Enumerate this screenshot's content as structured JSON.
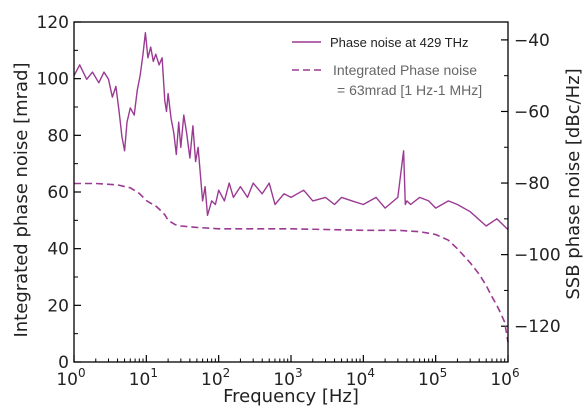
{
  "chart_data": {
    "type": "line",
    "xlabel": "Frequency [Hz]",
    "ylabel_left": "Integrated phase noise [mrad]",
    "ylabel_right": "SSB phase noise [dBc/Hz]",
    "x_scale": "log",
    "xlim": [
      1,
      1000000
    ],
    "ylim_left": [
      0,
      120
    ],
    "ylim_right": [
      -130,
      -35
    ],
    "x_ticks": [
      {
        "value": 1,
        "base": "10",
        "exp": "0"
      },
      {
        "value": 10,
        "base": "10",
        "exp": "1"
      },
      {
        "value": 100,
        "base": "10",
        "exp": "2"
      },
      {
        "value": 1000,
        "base": "10",
        "exp": "3"
      },
      {
        "value": 10000,
        "base": "10",
        "exp": "4"
      },
      {
        "value": 100000,
        "base": "10",
        "exp": "5"
      },
      {
        "value": 1000000,
        "base": "10",
        "exp": "6"
      }
    ],
    "y_ticks_left": [
      "0",
      "20",
      "40",
      "60",
      "80",
      "100",
      "120"
    ],
    "y_ticks_right": [
      "−120",
      "−100",
      "−80",
      "−60",
      "−40"
    ],
    "y_ticks_right_values": [
      -120,
      -100,
      -80,
      -60,
      -40
    ],
    "grid": false,
    "legend_position": "top-right",
    "colors": {
      "series": "#9b3a93"
    },
    "series": [
      {
        "name": "Phase noise at 429 THz",
        "axis": "right",
        "style": "solid",
        "x": [
          1,
          1.2,
          1.5,
          1.8,
          2.2,
          2.6,
          3,
          3.4,
          3.8,
          4.2,
          4.6,
          5,
          5.4,
          6,
          6.8,
          7.5,
          8.2,
          9,
          9.7,
          10.5,
          11.5,
          12.5,
          13.5,
          15,
          16.5,
          18,
          19,
          20,
          22,
          24,
          26,
          28,
          30,
          33,
          36,
          40,
          44,
          48,
          52,
          56,
          60,
          65,
          70,
          80,
          90,
          100,
          120,
          140,
          160,
          200,
          250,
          300,
          400,
          500,
          600,
          800,
          1000,
          1500,
          2000,
          3000,
          4000,
          5000,
          7000,
          10000,
          15000,
          20000,
          30000,
          36000,
          38000,
          40000,
          45000,
          60000,
          80000,
          100000,
          150000,
          200000,
          300000,
          500000,
          700000,
          1000000
        ],
        "values": [
          -50,
          -47,
          -51,
          -49,
          -52,
          -49,
          -51,
          -56,
          -53,
          -60,
          -67,
          -71,
          -63,
          -59,
          -61,
          -54,
          -50,
          -44,
          -38,
          -45,
          -42,
          -46,
          -44,
          -47,
          -45,
          -57,
          -60,
          -55,
          -62,
          -66,
          -72,
          -63,
          -70,
          -61,
          -66,
          -73,
          -64,
          -74,
          -70,
          -78,
          -85,
          -81,
          -89,
          -85,
          -86,
          -82,
          -85,
          -80,
          -84,
          -81,
          -84,
          -80,
          -83,
          -80,
          -86,
          -83,
          -84,
          -82,
          -85,
          -84,
          -86,
          -84,
          -85,
          -86,
          -84,
          -87,
          -84,
          -71,
          -86,
          -85,
          -86,
          -84,
          -85,
          -87,
          -85,
          -86,
          -88,
          -92,
          -90,
          -93
        ]
      },
      {
        "name": "Integrated Phase noise\n= 63mrad [1 Hz-1 MHz]",
        "axis": "left",
        "style": "dashed",
        "x": [
          1,
          2,
          4,
          6,
          8,
          10,
          11.5,
          13,
          15,
          18,
          20,
          25,
          30,
          50,
          100,
          1000,
          10000,
          30000,
          60000,
          100000,
          150000,
          200000,
          300000,
          400000,
          500000,
          600000,
          700000,
          800000,
          900000,
          1000000
        ],
        "values": [
          63,
          63,
          62.5,
          61.5,
          59.5,
          57,
          56,
          55.5,
          54,
          52,
          50,
          48.5,
          48,
          47.5,
          47,
          47,
          46.5,
          46.5,
          46,
          45,
          43,
          40,
          35,
          31,
          27,
          23,
          20,
          17,
          14,
          7
        ]
      }
    ]
  }
}
